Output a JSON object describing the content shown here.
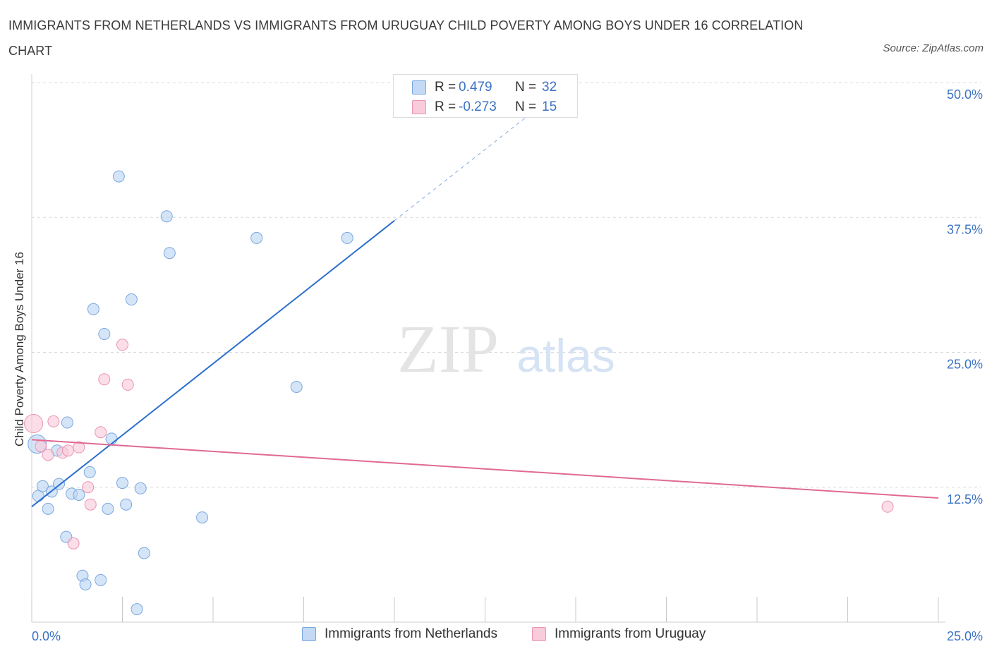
{
  "title": "IMMIGRANTS FROM NETHERLANDS VS IMMIGRANTS FROM URUGUAY CHILD POVERTY AMONG BOYS UNDER 16 CORRELATION CHART",
  "source": "Source: ZipAtlas.com",
  "watermark": {
    "zip": "ZIP",
    "atlas": "atlas"
  },
  "colors": {
    "netherlands_fill": "#b9d3f3",
    "netherlands_stroke": "#7aa7e0",
    "netherlands_line": "#2d6fcc",
    "uruguay_fill": "#f8c8d8",
    "uruguay_stroke": "#eb94b2",
    "uruguay_line": "#e06a92",
    "tick_label": "#3b72c4",
    "grid": "#d8d8d8"
  },
  "legend_top": {
    "rows": [
      {
        "r_label": "R =",
        "r_value": "0.479",
        "n_label": "N =",
        "n_value": "32"
      },
      {
        "r_label": "R =",
        "r_value": "-0.273",
        "n_label": "N =",
        "n_value": "15"
      }
    ]
  },
  "legend_bottom": [
    {
      "label": "Immigrants from Netherlands"
    },
    {
      "label": "Immigrants from Uruguay"
    }
  ],
  "chart_data": {
    "type": "scatter",
    "title": "IMMIGRANTS FROM NETHERLANDS VS IMMIGRANTS FROM URUGUAY CHILD POVERTY AMONG BOYS UNDER 16 CORRELATION CHART",
    "xlabel": "",
    "ylabel": "Child Poverty Among Boys Under 16",
    "xlim": [
      0,
      25
    ],
    "ylim": [
      0,
      50
    ],
    "x_tick_labels": [
      "0.0%",
      "25.0%"
    ],
    "y_ticks": [
      12.5,
      25.0,
      37.5,
      50.0
    ],
    "y_tick_labels": [
      "12.5%",
      "25.0%",
      "37.5%",
      "50.0%"
    ],
    "grid": true,
    "legend_position": "top-center",
    "series": [
      {
        "name": "Immigrants from Netherlands",
        "r": 0.479,
        "n": 32,
        "points": [
          [
            0.15,
            16.5
          ],
          [
            0.18,
            11.7
          ],
          [
            0.3,
            12.6
          ],
          [
            0.45,
            10.5
          ],
          [
            0.55,
            12.1
          ],
          [
            0.7,
            15.9
          ],
          [
            0.75,
            12.8
          ],
          [
            0.95,
            7.9
          ],
          [
            0.98,
            18.5
          ],
          [
            1.1,
            11.9
          ],
          [
            1.3,
            11.8
          ],
          [
            1.4,
            4.3
          ],
          [
            1.48,
            3.5
          ],
          [
            1.6,
            13.9
          ],
          [
            1.7,
            29.0
          ],
          [
            1.9,
            3.9
          ],
          [
            2.0,
            26.7
          ],
          [
            2.1,
            10.5
          ],
          [
            2.2,
            17.0
          ],
          [
            2.4,
            41.3
          ],
          [
            2.5,
            12.9
          ],
          [
            2.6,
            10.9
          ],
          [
            2.75,
            29.9
          ],
          [
            2.9,
            1.2
          ],
          [
            3.0,
            12.4
          ],
          [
            3.1,
            6.4
          ],
          [
            3.72,
            37.6
          ],
          [
            3.8,
            34.2
          ],
          [
            4.7,
            9.7
          ],
          [
            6.2,
            35.6
          ],
          [
            7.3,
            21.8
          ],
          [
            8.7,
            35.6
          ]
        ],
        "trend": {
          "x": [
            0,
            10
          ],
          "y": [
            10.7,
            37.2
          ],
          "dashed_to": [
            15,
            50.4
          ]
        }
      },
      {
        "name": "Immigrants from Uruguay",
        "r": -0.273,
        "n": 15,
        "points": [
          [
            0.05,
            18.4
          ],
          [
            0.25,
            16.3
          ],
          [
            0.45,
            15.5
          ],
          [
            0.6,
            18.6
          ],
          [
            0.85,
            15.7
          ],
          [
            1.0,
            15.9
          ],
          [
            1.15,
            7.3
          ],
          [
            1.3,
            16.2
          ],
          [
            1.55,
            12.5
          ],
          [
            1.62,
            10.9
          ],
          [
            1.9,
            17.6
          ],
          [
            2.0,
            22.5
          ],
          [
            2.5,
            25.7
          ],
          [
            2.65,
            22.0
          ],
          [
            23.6,
            10.7
          ]
        ],
        "trend": {
          "x": [
            0,
            25
          ],
          "y": [
            16.9,
            11.5
          ]
        }
      }
    ]
  }
}
